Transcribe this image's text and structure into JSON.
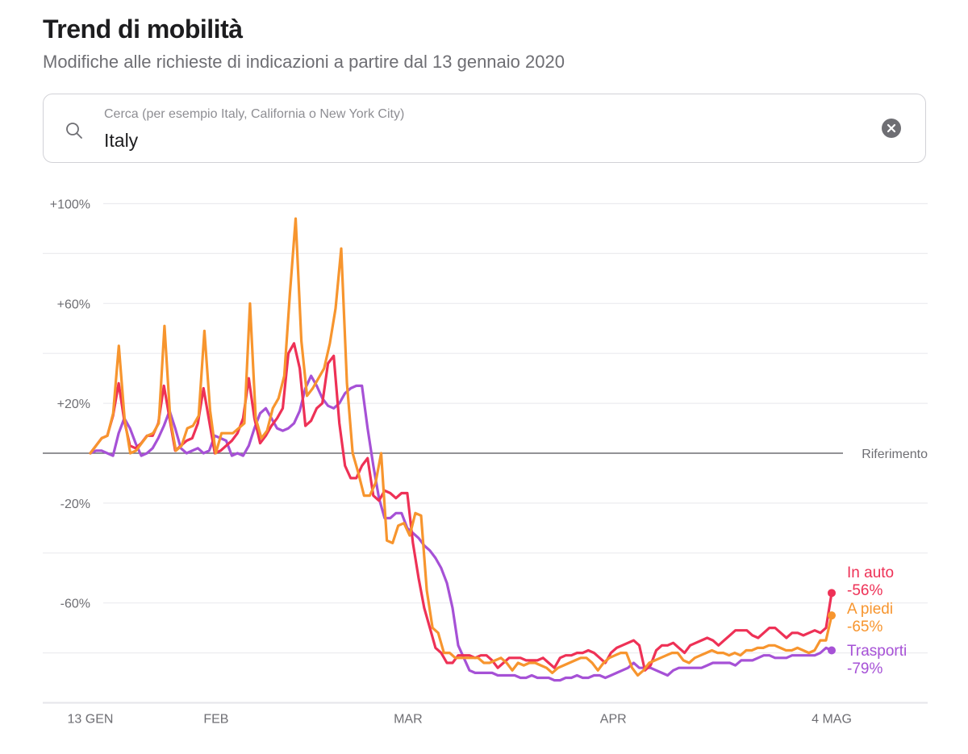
{
  "header": {
    "title": "Trend di mobilità",
    "subtitle": "Modifiche alle richieste di indicazioni a partire dal 13 gennaio 2020"
  },
  "search": {
    "placeholder": "Cerca (per esempio Italy, California o New York City)",
    "value": "Italy",
    "search_icon": "search-icon",
    "clear_icon": "clear-circle-icon"
  },
  "chart_data": {
    "type": "line",
    "title": "Trend di mobilità",
    "subtitle": "Modifiche alle richieste di indicazioni a partire dal 13 gennaio 2020",
    "xlabel": "",
    "ylabel": "",
    "x_start": "2020-01-13",
    "x_end": "2020-05-04",
    "x_unit": "day",
    "x_ticks": [
      {
        "day": 0,
        "label": "13 GEN"
      },
      {
        "day": 19,
        "label": "FEB"
      },
      {
        "day": 48,
        "label": "MAR"
      },
      {
        "day": 79,
        "label": "APR"
      },
      {
        "day": 112,
        "label": "4 MAG"
      }
    ],
    "ylim": [
      -100,
      100
    ],
    "y_gridlines": [
      100,
      80,
      60,
      40,
      20,
      0,
      -20,
      -40,
      -60,
      -80,
      -100
    ],
    "y_ticks": [
      {
        "value": 100,
        "label": "+100%"
      },
      {
        "value": 60,
        "label": "+60%"
      },
      {
        "value": 20,
        "label": "+20%"
      },
      {
        "value": -20,
        "label": "-20%"
      },
      {
        "value": -60,
        "label": "-60%"
      }
    ],
    "reference": {
      "value": 0,
      "label": "Riferimento"
    },
    "grid": true,
    "legend": "end-of-line-right",
    "series": [
      {
        "name": "Trasporti",
        "final_label": "-79%",
        "color": "#a651d6",
        "values": [
          0,
          1,
          1,
          0,
          -1,
          8,
          14,
          10,
          4,
          -1,
          0,
          2,
          6,
          11,
          17,
          10,
          2,
          0,
          1,
          2,
          0,
          1,
          7,
          6,
          5,
          -1,
          0,
          -1,
          3,
          10,
          16,
          18,
          14,
          10,
          9,
          10,
          12,
          17,
          26,
          31,
          27,
          22,
          19,
          18,
          20,
          24,
          26,
          27,
          27,
          10,
          -5,
          -18,
          -26,
          -26,
          -24,
          -24,
          -30,
          -32,
          -34,
          -37,
          -39,
          -42,
          -46,
          -52,
          -62,
          -77,
          -82,
          -87,
          -88,
          -88,
          -88,
          -88,
          -89,
          -89,
          -89,
          -89,
          -90,
          -90,
          -89,
          -90,
          -90,
          -90,
          -91,
          -91,
          -90,
          -90,
          -89,
          -90,
          -90,
          -89,
          -89,
          -90,
          -89,
          -88,
          -87,
          -86,
          -84,
          -86,
          -86,
          -86,
          -87,
          -88,
          -89,
          -87,
          -86,
          -86,
          -86,
          -86,
          -86,
          -85,
          -84,
          -84,
          -84,
          -84,
          -85,
          -83,
          -83,
          -83,
          -82,
          -81,
          -81,
          -82,
          -82,
          -82,
          -81,
          -81,
          -81,
          -81,
          -81,
          -80,
          -78,
          -79
        ]
      },
      {
        "name": "In auto",
        "final_label": "-56%",
        "color": "#ee3156",
        "values": [
          0,
          3,
          6,
          7,
          15,
          28,
          13,
          3,
          2,
          4,
          7,
          7,
          12,
          27,
          14,
          1,
          3,
          5,
          6,
          12,
          26,
          13,
          0,
          1,
          3,
          5,
          8,
          14,
          30,
          14,
          4,
          7,
          11,
          14,
          18,
          40,
          44,
          34,
          11,
          13,
          18,
          20,
          36,
          39,
          12,
          -5,
          -10,
          -10,
          -5,
          -2,
          -17,
          -19,
          -15,
          -16,
          -18,
          -16,
          -16,
          -36,
          -50,
          -62,
          -70,
          -78,
          -80,
          -84,
          -84,
          -81,
          -81,
          -81,
          -82,
          -81,
          -81,
          -83,
          -86,
          -84,
          -82,
          -82,
          -82,
          -83,
          -83,
          -83,
          -82,
          -84,
          -86,
          -82,
          -81,
          -81,
          -80,
          -80,
          -79,
          -80,
          -82,
          -84,
          -80,
          -78,
          -77,
          -76,
          -75,
          -77,
          -87,
          -85,
          -79,
          -77,
          -77,
          -76,
          -78,
          -80,
          -77,
          -76,
          -75,
          -74,
          -75,
          -77,
          -75,
          -73,
          -71,
          -71,
          -71,
          -73,
          -74,
          -72,
          -70,
          -70,
          -72,
          -74,
          -72,
          -72,
          -73,
          -72,
          -71,
          -72,
          -70,
          -56
        ]
      },
      {
        "name": "A piedi",
        "final_label": "-65%",
        "color": "#f7952e",
        "values": [
          0,
          3,
          6,
          7,
          16,
          43,
          14,
          0,
          1,
          4,
          7,
          8,
          12,
          51,
          14,
          1,
          3,
          10,
          11,
          15,
          49,
          17,
          0,
          8,
          8,
          8,
          10,
          12,
          60,
          14,
          6,
          9,
          18,
          22,
          31,
          64,
          94,
          45,
          23,
          26,
          30,
          34,
          44,
          58,
          82,
          28,
          0,
          -8,
          -17,
          -17,
          -12,
          0,
          -35,
          -36,
          -29,
          -28,
          -33,
          -24,
          -25,
          -55,
          -70,
          -72,
          -80,
          -80,
          -82,
          -82,
          -82,
          -82,
          -82,
          -84,
          -84,
          -83,
          -82,
          -84,
          -87,
          -84,
          -85,
          -84,
          -84,
          -85,
          -86,
          -88,
          -86,
          -85,
          -84,
          -83,
          -82,
          -82,
          -84,
          -87,
          -84,
          -82,
          -81,
          -80,
          -80,
          -86,
          -89,
          -87,
          -84,
          -83,
          -82,
          -81,
          -80,
          -80,
          -83,
          -84,
          -82,
          -81,
          -80,
          -79,
          -80,
          -80,
          -81,
          -80,
          -81,
          -79,
          -79,
          -78,
          -78,
          -77,
          -77,
          -78,
          -79,
          -79,
          -78,
          -79,
          -80,
          -79,
          -75,
          -75,
          -65
        ]
      }
    ]
  }
}
